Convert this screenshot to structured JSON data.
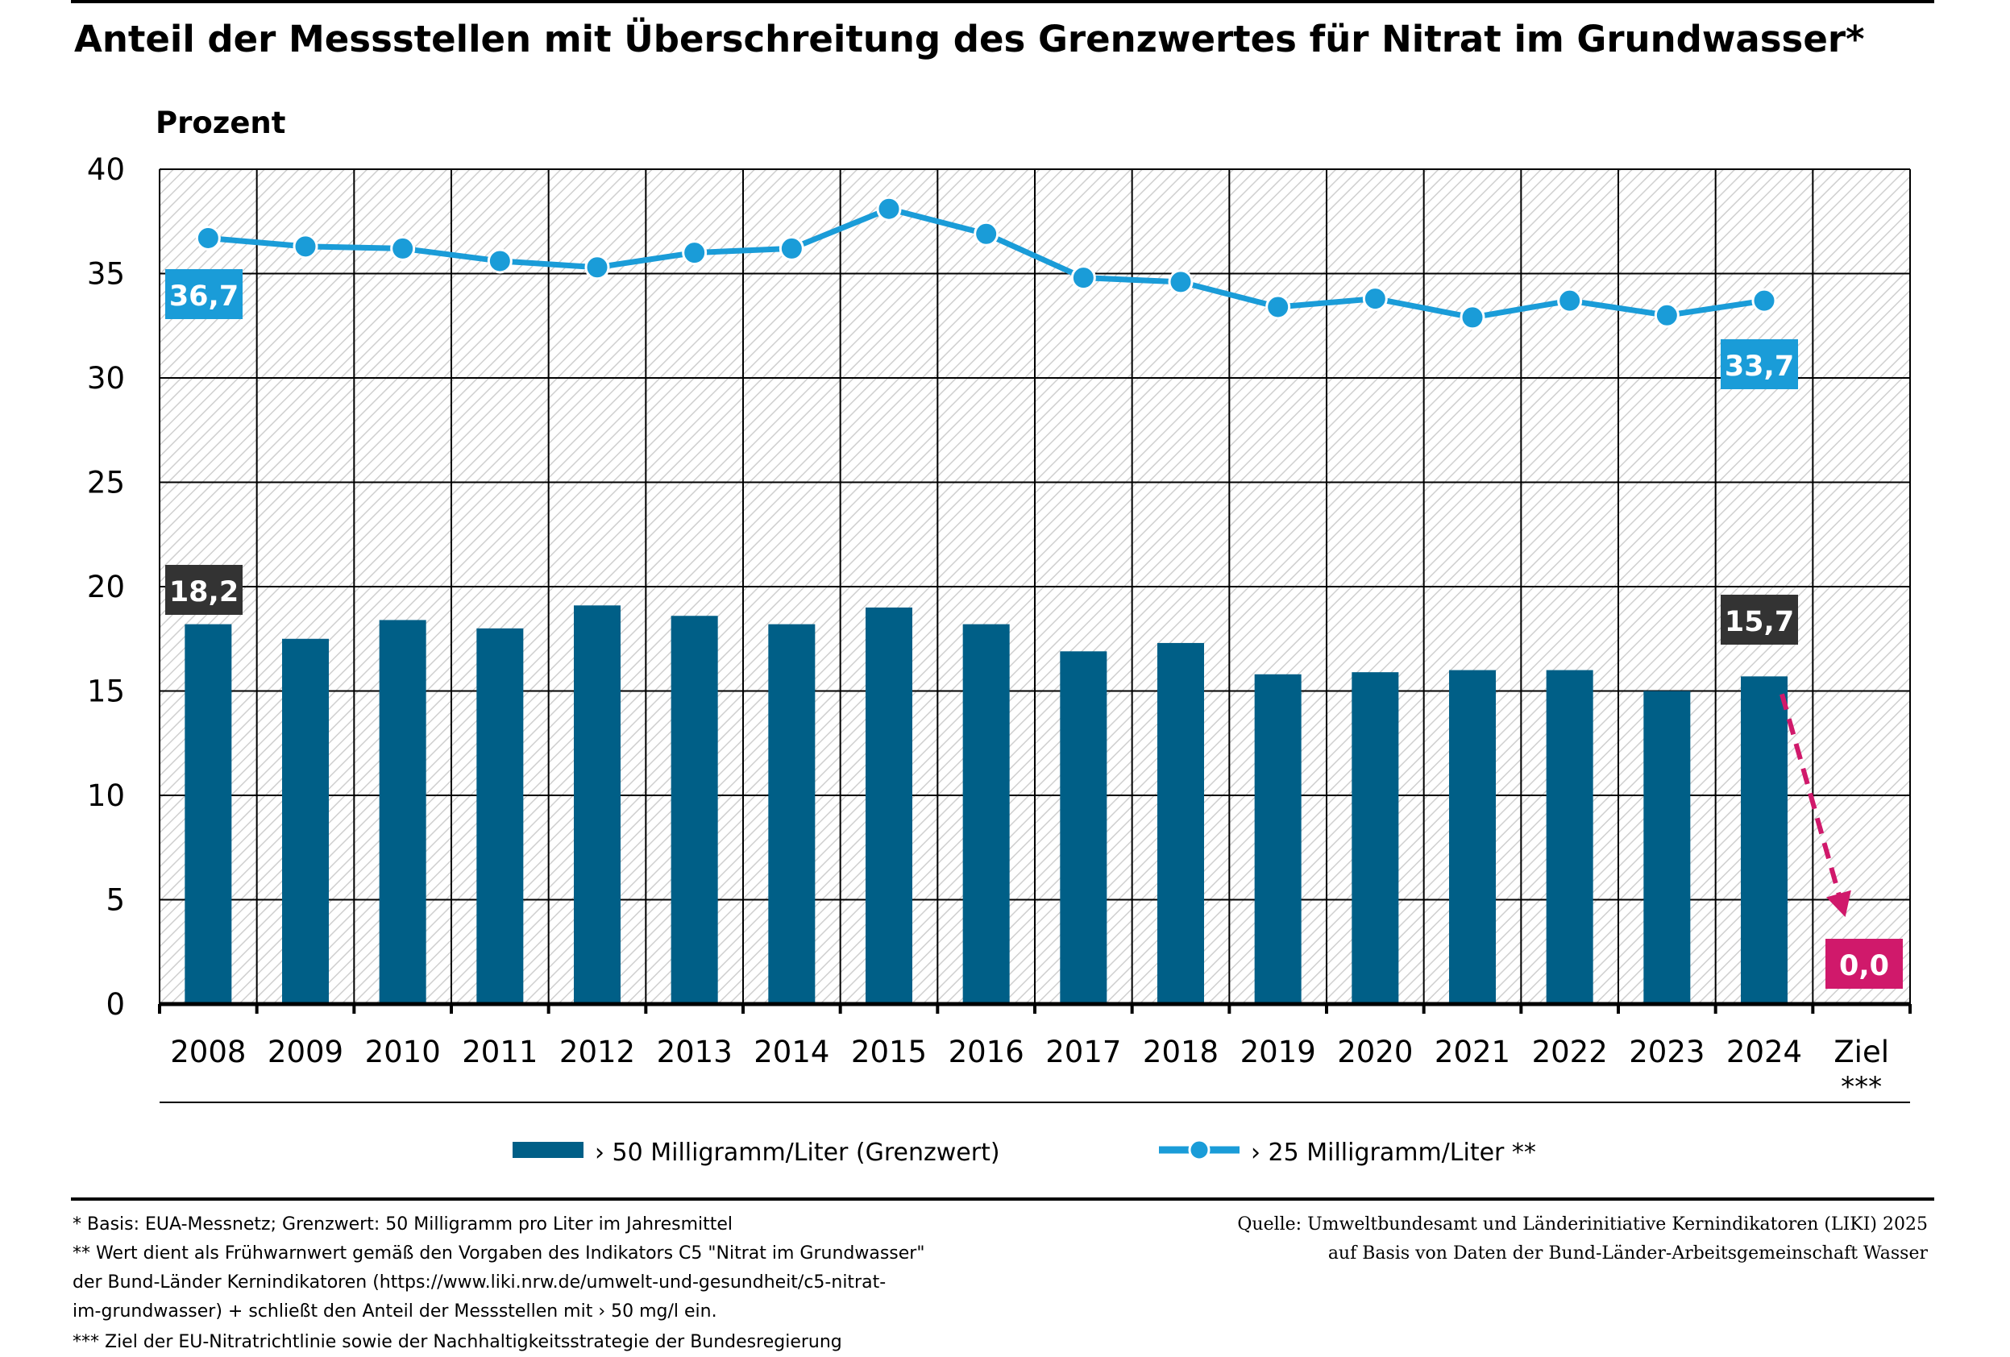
{
  "title": "Anteil der Messstellen mit Überschreitung des Grenzwertes für Nitrat im Grundwasser*",
  "chart_data": {
    "type": "bar",
    "ylabel": "Prozent",
    "ylim": [
      0,
      40
    ],
    "yticks": [
      0,
      5,
      10,
      15,
      20,
      25,
      30,
      35,
      40
    ],
    "grid": true,
    "categories": [
      "2008",
      "2009",
      "2010",
      "2011",
      "2012",
      "2013",
      "2014",
      "2015",
      "2016",
      "2017",
      "2018",
      "2019",
      "2020",
      "2021",
      "2022",
      "2023",
      "2024",
      "Ziel"
    ],
    "target_label_suffix": "***",
    "series": [
      {
        "name": "› 50 Milligramm/Liter (Grenzwert)",
        "type": "bar",
        "color": "#005f87",
        "values": [
          18.2,
          17.5,
          18.4,
          18.0,
          19.1,
          18.6,
          18.2,
          19.0,
          18.2,
          16.9,
          17.3,
          15.8,
          15.9,
          16.0,
          16.0,
          15.0,
          15.7,
          null
        ]
      },
      {
        "name": "› 25 Milligramm/Liter **",
        "type": "line",
        "color": "#1a9cd8",
        "values": [
          36.7,
          36.3,
          36.2,
          35.6,
          35.3,
          36.0,
          36.2,
          38.1,
          36.9,
          34.8,
          34.6,
          33.4,
          33.8,
          32.9,
          33.7,
          33.0,
          33.7,
          null
        ]
      }
    ],
    "annotations": [
      {
        "text": "36,7",
        "series": "line",
        "year": "2008",
        "color": "#1a9cd8"
      },
      {
        "text": "33,7",
        "series": "line",
        "year": "2024",
        "color": "#1a9cd8"
      },
      {
        "text": "18,2",
        "series": "bar",
        "year": "2008",
        "color": "#333333"
      },
      {
        "text": "15,7",
        "series": "bar",
        "year": "2024",
        "color": "#333333"
      },
      {
        "text": "0,0",
        "series": "bar",
        "year": "Ziel",
        "color": "#d0196b"
      }
    ],
    "target_arrow": {
      "from_year": "2024",
      "from_value": 15.7,
      "to_value": 0.0,
      "color": "#d0196b"
    }
  },
  "legend": [
    {
      "label": "› 50 Milligramm/Liter (Grenzwert)",
      "color": "#005f87"
    },
    {
      "label": "› 25 Milligramm/Liter **",
      "color": "#1a9cd8"
    }
  ],
  "footnotes": [
    "* Basis: EUA-Messnetz; Grenzwert: 50 Milligramm pro Liter im Jahresmittel",
    "** Wert dient als Frühwarnwert gemäß den Vorgaben des Indikators C5 \"Nitrat im Grundwasser\"",
    "der Bund-Länder Kernindikatoren (https://www.liki.nrw.de/umwelt-und-gesundheit/c5-nitrat-",
    "im-grundwasser) + schließt den Anteil der Messstellen mit › 50 mg/l ein.",
    "*** Ziel der EU-Nitratrichtlinie sowie der Nachhaltigkeitsstrategie der Bundesregierung"
  ],
  "source": [
    "Quelle: Umweltbundesamt und Länderinitiative Kernindikatoren (LIKI) 2025",
    "auf Basis von Daten der Bund-Länder-Arbeitsgemeinschaft Wasser"
  ]
}
